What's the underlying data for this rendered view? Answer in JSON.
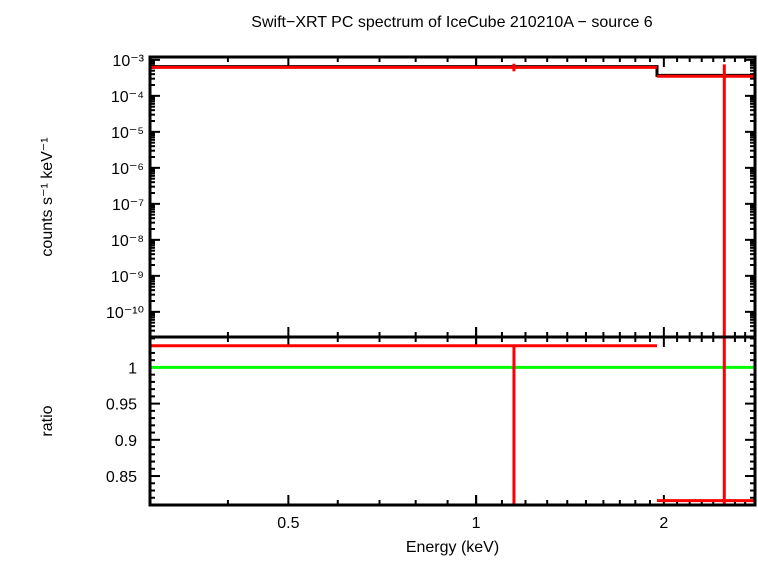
{
  "chart_data": [
    {
      "type": "line",
      "panel": "spectrum",
      "title": "Swift−XRT PC spectrum of IceCube 210210A − source 6",
      "xlabel": "",
      "ylabel": "counts s⁻¹ keV⁻¹",
      "xscale": "log",
      "yscale": "log",
      "xlim": [
        0.3,
        2.8
      ],
      "ylim": [
        2e-11,
        0.0012
      ],
      "yticks": [
        1e-10,
        1e-09,
        1e-08,
        1e-07,
        1e-06,
        1e-05,
        0.0001,
        0.001
      ],
      "ytick_labels": [
        "10⁻¹⁰",
        "10⁻⁹",
        "10⁻⁸",
        "10⁻⁷",
        "10⁻⁶",
        "10⁻⁵",
        "10⁻⁴",
        "10⁻³"
      ],
      "model": {
        "color": "#000000",
        "steps": [
          {
            "x0": 0.3,
            "x1": 1.95,
            "y": 0.00065
          },
          {
            "x0": 1.95,
            "x1": 2.8,
            "y": 0.00037
          }
        ]
      },
      "data": {
        "color": "#ff0000",
        "points": [
          {
            "x": 1.15,
            "xerr": [
              0.3,
              1.95
            ],
            "y": 0.00062,
            "yerr": [
              0.00048,
              0.00078
            ]
          },
          {
            "x": 2.5,
            "xerr": [
              1.95,
              2.8
            ],
            "y": 0.00035,
            "yerr": [
              2e-11,
              0.00075
            ]
          }
        ]
      }
    },
    {
      "type": "line",
      "panel": "ratio",
      "title": "",
      "xlabel": "Energy (keV)",
      "ylabel": "ratio",
      "xscale": "log",
      "xlim": [
        0.3,
        2.8
      ],
      "ylim": [
        0.81,
        1.042
      ],
      "xticks": [
        0.5,
        1,
        2
      ],
      "xtick_labels": [
        "0.5",
        "1",
        "2"
      ],
      "yticks": [
        0.85,
        0.9,
        0.95,
        1
      ],
      "ytick_labels": [
        "0.85",
        "0.9",
        "0.95",
        "1"
      ],
      "reference_line": {
        "y": 1,
        "color": "#00ff00"
      },
      "data": {
        "color": "#ff0000",
        "points": [
          {
            "x": 1.15,
            "xerr": [
              0.3,
              1.95
            ],
            "y": 1.03,
            "yerr": [
              0.81,
              1.03
            ]
          },
          {
            "x": 2.5,
            "xerr": [
              1.95,
              2.8
            ],
            "y": 0.816,
            "yerr": [
              0.81,
              1.042
            ]
          }
        ]
      }
    }
  ]
}
